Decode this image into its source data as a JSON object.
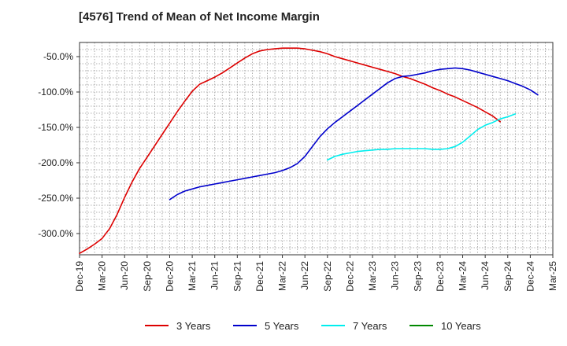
{
  "chart_data": {
    "type": "line",
    "title": "[4576]  Trend of Mean of Net Income Margin",
    "xlabel": "",
    "ylabel": "",
    "x_ticks": [
      "Dec-19",
      "Mar-20",
      "Jun-20",
      "Sep-20",
      "Dec-20",
      "Mar-21",
      "Jun-21",
      "Sep-21",
      "Dec-21",
      "Mar-22",
      "Jun-22",
      "Sep-22",
      "Dec-22",
      "Mar-23",
      "Jun-23",
      "Sep-23",
      "Dec-23",
      "Mar-24",
      "Jun-24",
      "Sep-24",
      "Dec-24",
      "Mar-25"
    ],
    "y_ticks": [
      -50,
      -100,
      -150,
      -200,
      -250,
      -300
    ],
    "y_tick_labels": [
      "-50.0%",
      "-100.0%",
      "-150.0%",
      "-200.0%",
      "-250.0%",
      "-300.0%"
    ],
    "ylim": [
      -330,
      -30
    ],
    "grid": true,
    "legend_position": "bottom",
    "series": [
      {
        "name": "3 Years",
        "color": "#dd0000",
        "start_index": 0,
        "values": [
          -328,
          -322,
          -315,
          -307,
          -293,
          -273,
          -249,
          -227,
          -208,
          -192,
          -176,
          -160,
          -144,
          -128,
          -113,
          -99,
          -89,
          -84,
          -79,
          -73,
          -66,
          -59,
          -52,
          -46,
          -42,
          -40,
          -39,
          -38,
          -38,
          -38,
          -39,
          -41,
          -43,
          -46,
          -50,
          -53,
          -56,
          -59,
          -62,
          -65,
          -68,
          -71,
          -74,
          -78,
          -81,
          -85,
          -89,
          -94,
          -98,
          -103,
          -107,
          -112,
          -117,
          -122,
          -128,
          -134,
          -142
        ]
      },
      {
        "name": "5 Years",
        "color": "#0000cc",
        "start_index": 12,
        "values": [
          -252,
          -245,
          -240,
          -237,
          -234,
          -232,
          -230,
          -228,
          -226,
          -224,
          -222,
          -220,
          -218,
          -216,
          -214,
          -211,
          -207,
          -201,
          -191,
          -177,
          -163,
          -152,
          -143,
          -135,
          -127,
          -119,
          -111,
          -103,
          -95,
          -87,
          -81,
          -78,
          -77,
          -75,
          -73,
          -70,
          -68,
          -67,
          -66,
          -67,
          -69,
          -72,
          -75,
          -78,
          -81,
          -84,
          -88,
          -92,
          -97,
          -104
        ]
      },
      {
        "name": "7 Years",
        "color": "#00eeee",
        "start_index": 33,
        "values": [
          -196,
          -191,
          -188,
          -186,
          -184,
          -183,
          -182,
          -181,
          -181,
          -180,
          -180,
          -180,
          -180,
          -180,
          -181,
          -181,
          -180,
          -177,
          -171,
          -162,
          -153,
          -147,
          -143,
          -138,
          -135,
          -131
        ]
      },
      {
        "name": "10 Years",
        "color": "#008800",
        "start_index": 0,
        "values": []
      }
    ]
  }
}
